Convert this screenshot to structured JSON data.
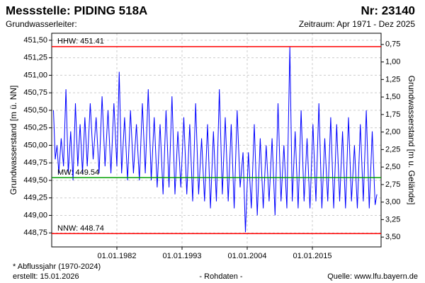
{
  "chart_data": {
    "type": "line",
    "title": "Messstelle: PIDING 518A",
    "number": "Nr: 23140",
    "subtitle": "Grundwasserleiter:",
    "period": "Zeitraum: Apr 1971 - Dez 2025",
    "y_label": "Grundwasserstand [m ü. NN]",
    "y2_label": "Grundwasserstand [m u. Gelände]",
    "footnote": "* Abflussjahr (1970-2024)",
    "created": "erstellt:  15.01.2026",
    "data_kind": "- Rohdaten -",
    "source": "Quelle:  www.lfu.bayern.de",
    "color": "#0000ff",
    "grid": true,
    "xlim": [
      1971.0,
      2026.6
    ],
    "xticks": [
      {
        "value": 1982,
        "label": "01.01.1982"
      },
      {
        "value": 1993,
        "label": "01.01.1993"
      },
      {
        "value": 2004,
        "label": "01.01.2004"
      },
      {
        "value": 2015,
        "label": "01.01.2015"
      }
    ],
    "ylim": [
      448.55,
      451.6
    ],
    "yticks": [
      {
        "value": 451.5,
        "label": "451,50"
      },
      {
        "value": 451.25,
        "label": "451,25"
      },
      {
        "value": 451.0,
        "label": "451,00"
      },
      {
        "value": 450.75,
        "label": "450,75"
      },
      {
        "value": 450.5,
        "label": "450,50"
      },
      {
        "value": 450.25,
        "label": "450,25"
      },
      {
        "value": 450.0,
        "label": "450,00"
      },
      {
        "value": 449.75,
        "label": "449,75"
      },
      {
        "value": 449.5,
        "label": "449,50"
      },
      {
        "value": 449.25,
        "label": "449,25"
      },
      {
        "value": 449.0,
        "label": "449,00"
      },
      {
        "value": 448.75,
        "label": "448,75"
      }
    ],
    "y2lim": [
      3.64,
      0.59
    ],
    "y2ticks": [
      {
        "value": 0.75,
        "label": "0,75"
      },
      {
        "value": 1.0,
        "label": "1,00"
      },
      {
        "value": 1.25,
        "label": "1,25"
      },
      {
        "value": 1.5,
        "label": "1,50"
      },
      {
        "value": 1.75,
        "label": "1,75"
      },
      {
        "value": 2.0,
        "label": "2,00"
      },
      {
        "value": 2.25,
        "label": "2,25"
      },
      {
        "value": 2.5,
        "label": "2,50"
      },
      {
        "value": 2.75,
        "label": "2,75"
      },
      {
        "value": 3.0,
        "label": "3,00"
      },
      {
        "value": 3.25,
        "label": "3,25"
      },
      {
        "value": 3.5,
        "label": "3,50"
      }
    ],
    "reference_lines": [
      {
        "label": "HHW: 451.41",
        "value": 451.41,
        "color": "#ff0000"
      },
      {
        "label": "MW: 449.54",
        "value": 449.54,
        "color": "#00a000"
      },
      {
        "label": "NNW: 448.74",
        "value": 448.74,
        "color": "#ff0000"
      }
    ],
    "x": [
      1971.3,
      1971.6,
      1971.9,
      1972.2,
      1972.6,
      1973.0,
      1973.4,
      1973.8,
      1974.2,
      1974.6,
      1975.0,
      1975.4,
      1975.8,
      1976.2,
      1976.6,
      1977.0,
      1977.5,
      1978.0,
      1978.5,
      1979.0,
      1979.5,
      1980.0,
      1980.5,
      1981.0,
      1981.5,
      1982.0,
      1982.4,
      1982.8,
      1983.3,
      1983.8,
      1984.3,
      1984.8,
      1985.3,
      1985.8,
      1986.3,
      1986.8,
      1987.3,
      1987.8,
      1988.3,
      1988.8,
      1989.3,
      1989.8,
      1990.3,
      1990.8,
      1991.3,
      1991.8,
      1992.3,
      1992.8,
      1993.3,
      1993.8,
      1994.3,
      1994.8,
      1995.3,
      1995.8,
      1996.3,
      1996.8,
      1997.3,
      1997.8,
      1998.3,
      1998.8,
      1999.3,
      1999.8,
      2000.3,
      2000.8,
      2001.3,
      2001.8,
      2002.3,
      2002.8,
      2003.3,
      2003.7,
      2004.2,
      2004.7,
      2005.2,
      2005.7,
      2006.2,
      2006.7,
      2007.2,
      2007.7,
      2008.2,
      2008.7,
      2009.2,
      2009.7,
      2010.2,
      2010.7,
      2011.2,
      2011.6,
      2012.1,
      2012.6,
      2013.1,
      2013.6,
      2014.1,
      2014.6,
      2015.1,
      2015.6,
      2016.1,
      2016.6,
      2017.1,
      2017.6,
      2018.1,
      2018.6,
      2019.1,
      2019.6,
      2020.1,
      2020.6,
      2021.1,
      2021.6,
      2022.1,
      2022.6,
      2023.1,
      2023.6,
      2024.1,
      2024.6,
      2025.1,
      2025.6,
      2025.9
    ],
    "values": [
      450.5,
      449.8,
      450.0,
      449.6,
      450.1,
      449.7,
      450.8,
      449.6,
      450.2,
      449.5,
      450.6,
      449.7,
      450.3,
      449.6,
      450.4,
      449.7,
      450.6,
      449.8,
      450.4,
      449.6,
      450.7,
      449.7,
      450.5,
      449.6,
      450.6,
      449.7,
      451.05,
      449.6,
      450.4,
      449.5,
      450.5,
      449.6,
      450.3,
      449.5,
      450.6,
      449.6,
      450.8,
      449.5,
      450.4,
      449.4,
      450.3,
      449.3,
      450.5,
      449.4,
      450.7,
      449.3,
      450.2,
      449.4,
      450.4,
      449.3,
      450.3,
      449.2,
      450.6,
      449.3,
      450.1,
      449.2,
      450.3,
      449.1,
      450.2,
      449.2,
      450.8,
      449.3,
      450.4,
      449.2,
      450.3,
      449.1,
      450.5,
      449.4,
      449.9,
      448.76,
      449.9,
      449.1,
      450.3,
      449.0,
      450.1,
      449.1,
      450.0,
      449.2,
      450.1,
      449.0,
      450.6,
      449.2,
      450.0,
      449.1,
      451.41,
      449.2,
      450.2,
      449.1,
      450.5,
      449.2,
      450.1,
      449.1,
      450.3,
      449.2,
      450.6,
      449.1,
      450.1,
      449.2,
      450.4,
      449.1,
      450.3,
      449.2,
      450.2,
      449.1,
      450.4,
      449.2,
      450.0,
      449.1,
      450.3,
      449.2,
      450.5,
      449.1,
      450.2,
      449.15,
      449.3
    ]
  }
}
